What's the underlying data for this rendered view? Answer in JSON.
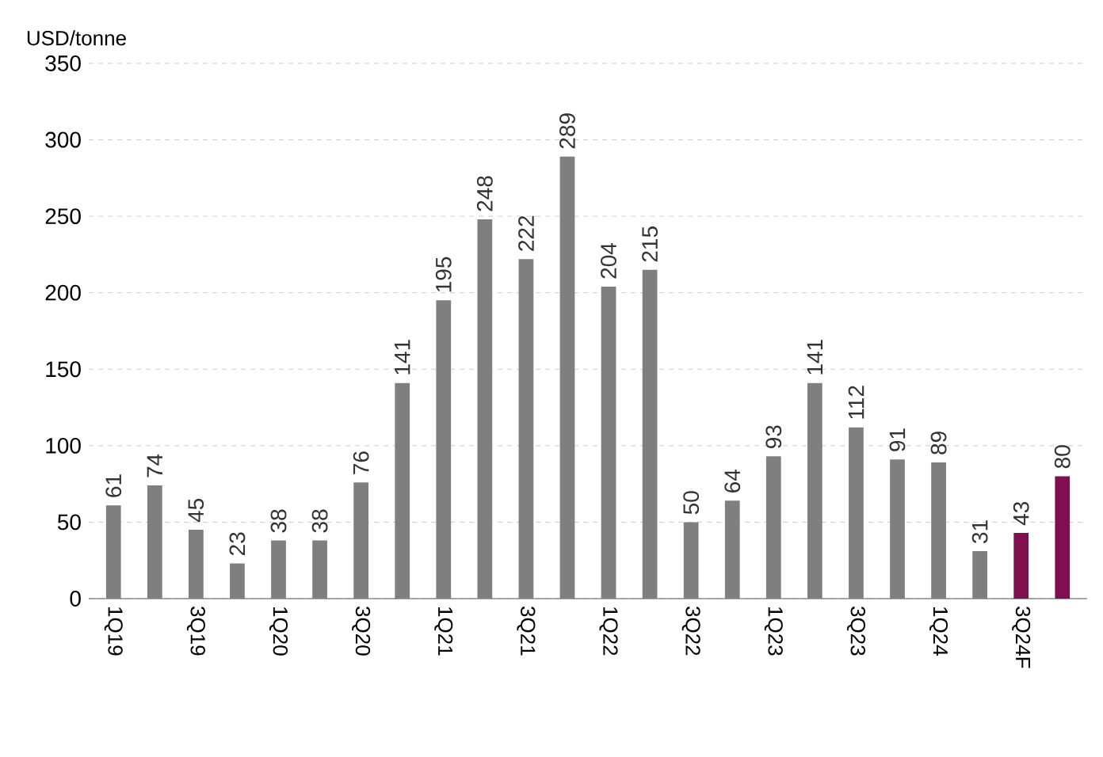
{
  "chart_data": {
    "type": "bar",
    "ylabel": "USD/tonne",
    "categories": [
      "1Q19",
      null,
      "3Q19",
      null,
      "1Q20",
      null,
      "3Q20",
      null,
      "1Q21",
      null,
      "3Q21",
      null,
      "1Q22",
      null,
      "3Q22",
      null,
      "1Q23",
      null,
      "3Q23",
      null,
      "1Q24",
      null,
      "3Q24F",
      null
    ],
    "values": [
      61,
      74,
      45,
      23,
      38,
      38,
      76,
      141,
      195,
      248,
      222,
      289,
      204,
      215,
      50,
      64,
      93,
      141,
      112,
      91,
      89,
      31,
      43,
      80
    ],
    "colors": [
      "#7f7f7f",
      "#7f7f7f",
      "#7f7f7f",
      "#7f7f7f",
      "#7f7f7f",
      "#7f7f7f",
      "#7f7f7f",
      "#7f7f7f",
      "#7f7f7f",
      "#7f7f7f",
      "#7f7f7f",
      "#7f7f7f",
      "#7f7f7f",
      "#7f7f7f",
      "#7f7f7f",
      "#7f7f7f",
      "#7f7f7f",
      "#7f7f7f",
      "#7f7f7f",
      "#7f7f7f",
      "#7f7f7f",
      "#7f7f7f",
      "#800f50",
      "#800f50"
    ],
    "ylim": [
      0,
      350
    ],
    "yticks": [
      0,
      50,
      100,
      150,
      200,
      250,
      300,
      350
    ],
    "grid": "y",
    "data_labels": true
  }
}
